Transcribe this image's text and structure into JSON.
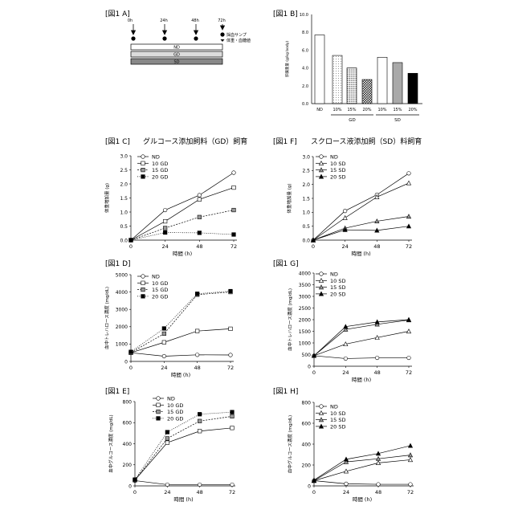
{
  "panel_labels": {
    "A": "[図1 A]",
    "B": "[図1 B]",
    "C": "[図1 C]",
    "D": "[図1 D]",
    "E": "[図1 E]",
    "F": "[図1 F]",
    "G": "[図1 G]",
    "H": "[図1 H]"
  },
  "titles": {
    "C": "グルコース添加飼料（GD）飼育",
    "F": "スクロース液添加飼（SD）料飼育"
  },
  "panel_a": {
    "times": [
      "0h",
      "24h",
      "48h",
      "72h"
    ],
    "bars": [
      "ND",
      "GD",
      "SD"
    ],
    "legend_dot": "採血サンプ",
    "legend_arrow": "体重・血糖値"
  },
  "colors": {
    "gd_bar": "#dcdcdc",
    "sd_bar": "#888888"
  },
  "chart_data": [
    {
      "id": "B",
      "type": "bar",
      "categories": [
        "ND",
        "10%",
        "15%",
        "20%",
        "10%",
        "15%",
        "20%"
      ],
      "groups": [
        {
          "label": "GD",
          "range": [
            1,
            3
          ]
        },
        {
          "label": "SD",
          "range": [
            4,
            6
          ]
        }
      ],
      "values": [
        7.7,
        5.4,
        4.0,
        2.7,
        5.2,
        4.6,
        3.4
      ],
      "ylabel": "肝臓重量 (g/kg body)",
      "ylim": [
        0,
        10
      ],
      "yticks": [
        "0.0",
        "2.0",
        "4.0",
        "6.0",
        "8.0",
        "10.0"
      ]
    },
    {
      "id": "C",
      "type": "line",
      "x": [
        0,
        24,
        48,
        72
      ],
      "xticks": [
        "0",
        "24",
        "48",
        "72"
      ],
      "xlabel": "時間 (h)",
      "ylabel": "体重増加量 (g)",
      "ylim": [
        0,
        3
      ],
      "yticks": [
        "0.0",
        "0.5",
        "1.0",
        "1.5",
        "2.0",
        "2.5",
        "3.0"
      ],
      "series": [
        {
          "name": "ND",
          "values": [
            0,
            1.07,
            1.6,
            2.4
          ]
        },
        {
          "name": "10 GD",
          "values": [
            0,
            0.67,
            1.45,
            1.87
          ]
        },
        {
          "name": "15 GD",
          "values": [
            0,
            0.43,
            0.82,
            1.07
          ]
        },
        {
          "name": "20 GD",
          "values": [
            0,
            0.27,
            0.26,
            0.2
          ]
        }
      ]
    },
    {
      "id": "F",
      "type": "line",
      "x": [
        0,
        24,
        48,
        72
      ],
      "xticks": [
        "0",
        "24",
        "48",
        "72"
      ],
      "xlabel": "時間 (h)",
      "ylabel": "体重増加量 (g)",
      "ylim": [
        0,
        3
      ],
      "yticks": [
        "0.0",
        "0.5",
        "1.0",
        "1.5",
        "2.0",
        "2.5",
        "3.0"
      ],
      "series": [
        {
          "name": "ND",
          "values": [
            0,
            1.05,
            1.63,
            2.4
          ]
        },
        {
          "name": "10 SD",
          "values": [
            0,
            0.8,
            1.55,
            2.05
          ]
        },
        {
          "name": "15 SD",
          "values": [
            0,
            0.43,
            0.68,
            0.85
          ]
        },
        {
          "name": "20 SD",
          "values": [
            0,
            0.37,
            0.35,
            0.5
          ]
        }
      ]
    },
    {
      "id": "D",
      "type": "line",
      "x": [
        0,
        24,
        48,
        72
      ],
      "xticks": [
        "0",
        "24",
        "48",
        "72"
      ],
      "xlabel": "時間 (h)",
      "ylabel": "血中トレハロース濃度 (mg/dL)",
      "ylim": [
        0,
        5000
      ],
      "yticks": [
        "0",
        "1000",
        "2000",
        "3000",
        "4000",
        "5000"
      ],
      "series": [
        {
          "name": "ND",
          "values": [
            500,
            300,
            380,
            370
          ]
        },
        {
          "name": "10 GD",
          "values": [
            500,
            1100,
            1750,
            1880
          ]
        },
        {
          "name": "15 GD",
          "values": [
            500,
            1600,
            3850,
            4000
          ]
        },
        {
          "name": "20 GD",
          "values": [
            550,
            1900,
            3900,
            4050
          ]
        }
      ]
    },
    {
      "id": "G",
      "type": "line",
      "x": [
        0,
        24,
        48,
        72
      ],
      "xticks": [
        "0",
        "24",
        "48",
        "72"
      ],
      "xlabel": "時間 (h)",
      "ylabel": "血中トレハロース濃度 (mg/dL)",
      "ylim": [
        0,
        4000
      ],
      "yticks": [
        "0",
        "500",
        "1000",
        "1500",
        "2000",
        "2500",
        "3000",
        "3500",
        "4000"
      ],
      "series": [
        {
          "name": "ND",
          "values": [
            450,
            330,
            360,
            360
          ]
        },
        {
          "name": "10 SD",
          "values": [
            450,
            950,
            1230,
            1500
          ]
        },
        {
          "name": "15 SD",
          "values": [
            450,
            1580,
            1800,
            1980
          ]
        },
        {
          "name": "20 SD",
          "values": [
            450,
            1700,
            1900,
            2000
          ]
        }
      ]
    },
    {
      "id": "E",
      "type": "line",
      "x": [
        0,
        24,
        48,
        72
      ],
      "xticks": [
        "0",
        "24",
        "48",
        "72"
      ],
      "xlabel": "時間 (h)",
      "ylabel": "血中グルコース濃度 (mg/dL)",
      "ylim": [
        0,
        800
      ],
      "yticks": [
        "0",
        "200",
        "400",
        "600",
        "800"
      ],
      "series": [
        {
          "name": "ND",
          "values": [
            50,
            12,
            12,
            12
          ]
        },
        {
          "name": "10 GD",
          "values": [
            55,
            410,
            520,
            550
          ]
        },
        {
          "name": "15 GD",
          "values": [
            55,
            450,
            615,
            660
          ]
        },
        {
          "name": "20 GD",
          "values": [
            60,
            510,
            680,
            700
          ]
        }
      ]
    },
    {
      "id": "H",
      "type": "line",
      "x": [
        0,
        24,
        48,
        72
      ],
      "xticks": [
        "0",
        "24",
        "48",
        "72"
      ],
      "xlabel": "時間 (h)",
      "ylabel": "血中グルコース濃度 (mg/dL)",
      "ylim": [
        0,
        800
      ],
      "yticks": [
        "0",
        "200",
        "400",
        "600",
        "800"
      ],
      "series": [
        {
          "name": "ND",
          "values": [
            50,
            20,
            15,
            15
          ]
        },
        {
          "name": "10 SD",
          "values": [
            50,
            140,
            220,
            250
          ]
        },
        {
          "name": "15 SD",
          "values": [
            50,
            230,
            260,
            295
          ]
        },
        {
          "name": "20 SD",
          "values": [
            55,
            255,
            310,
            385
          ]
        }
      ]
    }
  ]
}
